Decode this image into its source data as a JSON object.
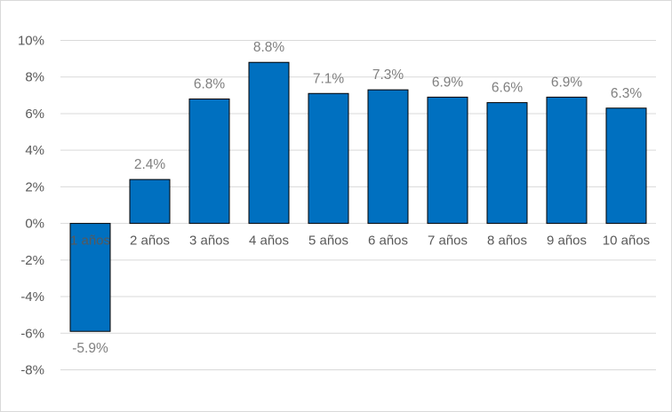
{
  "chart_data": {
    "type": "bar",
    "categories": [
      "1 años",
      "2 años",
      "3 años",
      "4 años",
      "5 años",
      "6 años",
      "7 años",
      "8 años",
      "9 años",
      "10 años"
    ],
    "values": [
      -5.9,
      2.4,
      6.8,
      8.8,
      7.1,
      7.3,
      6.9,
      6.6,
      6.9,
      6.3
    ],
    "data_labels": [
      "-5.9%",
      "2.4%",
      "6.8%",
      "8.8%",
      "7.1%",
      "7.3%",
      "6.9%",
      "6.6%",
      "6.9%",
      "6.3%"
    ],
    "ylim": [
      -8,
      10
    ],
    "yticks": [
      10,
      8,
      6,
      4,
      2,
      0,
      -2,
      -4,
      -6,
      -8
    ],
    "ytick_labels": [
      "10%",
      "8%",
      "6%",
      "4%",
      "2%",
      "0%",
      "-2%",
      "-4%",
      "-6%",
      "-8%"
    ],
    "grid": true,
    "legend": "none",
    "bar_color": "#0070c0",
    "title": "",
    "xlabel": "",
    "ylabel": ""
  }
}
